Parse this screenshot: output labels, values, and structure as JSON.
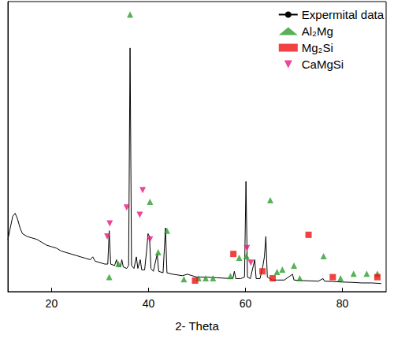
{
  "chart_data": {
    "type": "line",
    "xlabel": "2- Theta",
    "xlim": [
      11,
      89
    ],
    "xticks": [
      20,
      40,
      60,
      80
    ],
    "ylim": [
      0,
      100
    ],
    "tick_labels": "x",
    "grid": false,
    "legend": "upper right",
    "series": [
      {
        "name": "Expermital data",
        "type": "line",
        "color": "#000000",
        "line_style": "solid",
        "x": [
          11,
          11.5,
          12,
          12.5,
          13,
          13.5,
          14,
          15,
          16,
          17,
          18,
          19,
          20,
          21,
          22,
          23,
          24,
          25,
          26,
          27,
          28,
          28.5,
          29,
          30,
          31,
          31.6,
          31.9,
          32.2,
          33,
          33.4,
          33.7,
          34.2,
          34.5,
          34.8,
          35.5,
          35.9,
          36.2,
          36.5,
          37,
          37.5,
          37.8,
          38.3,
          38.6,
          39.2,
          39.6,
          39.9,
          40.2,
          40.5,
          41,
          41.8,
          42.1,
          43,
          43.5,
          43.8,
          45,
          47,
          48,
          49,
          50,
          52,
          54,
          56,
          57.4,
          57.7,
          58,
          59,
          59.8,
          60.1,
          60.4,
          61,
          61.9,
          62.2,
          63,
          63.6,
          63.9,
          64.2,
          64.5,
          65.5,
          66.5,
          68,
          69.7,
          70,
          72,
          75,
          76,
          76.3,
          78,
          80,
          82,
          84,
          86,
          88
        ],
        "values": [
          18,
          22,
          26,
          27,
          25,
          22,
          20,
          19,
          18.5,
          18,
          17,
          16,
          15.5,
          15,
          14,
          13.5,
          13,
          12.5,
          12,
          11.5,
          11,
          12,
          10.5,
          10,
          9.5,
          9.5,
          21,
          9.5,
          9,
          11,
          9,
          8.5,
          11,
          8.5,
          8,
          9,
          84,
          9,
          8,
          12,
          8,
          11,
          7.5,
          7.5,
          14,
          20,
          19,
          8,
          7,
          13,
          7,
          6.5,
          22,
          6.5,
          6,
          5.5,
          6,
          5.5,
          5,
          5,
          4.8,
          4.6,
          4.5,
          7,
          4.5,
          4.5,
          5,
          38,
          5,
          4.5,
          11,
          4.5,
          4.5,
          9,
          12,
          19,
          5,
          4,
          4,
          4,
          6,
          4,
          3.8,
          3.6,
          4.5,
          3.6,
          3.5,
          3.3,
          3.2,
          3,
          3,
          2.8
        ]
      },
      {
        "name": "Al₂Mg",
        "type": "scatter",
        "color": "#2e9e2e",
        "marker": "triangle",
        "x": [
          31.9,
          33.8,
          36.2,
          40.3,
          42.0,
          43.8,
          47.3,
          50.3,
          51.8,
          53.3,
          56.9,
          58.7,
          60.2,
          65.1,
          66.5,
          67.6,
          70.0,
          71.2,
          76.1,
          79.6,
          82.3,
          85.0,
          87.2
        ],
        "values": [
          5,
          9.5,
          95.5,
          31,
          13.6,
          21,
          4.3,
          4.6,
          4.6,
          4.6,
          5.4,
          11.7,
          12.2,
          31.5,
          6.8,
          7.6,
          9,
          4.6,
          12.2,
          4.6,
          6.2,
          6.2,
          6.2
        ]
      },
      {
        "name": "Mg₂Si",
        "type": "scatter",
        "color": "#ee1111",
        "marker": "square",
        "x": [
          49.6,
          57.5,
          63.5,
          65.6,
          73.0,
          78.0,
          87.2
        ],
        "values": [
          3.8,
          13,
          7,
          4.6,
          19.6,
          5,
          5
        ]
      },
      {
        "name": "CaMgSi",
        "type": "scatter",
        "color": "#e6197a",
        "marker": "triangle_down",
        "x": [
          31.5,
          32.0,
          35.5,
          38.8,
          38.2,
          40.3,
          60.3,
          61.1
        ],
        "values": [
          19,
          23.5,
          29,
          35,
          26.5,
          18,
          15,
          10
        ]
      }
    ]
  }
}
